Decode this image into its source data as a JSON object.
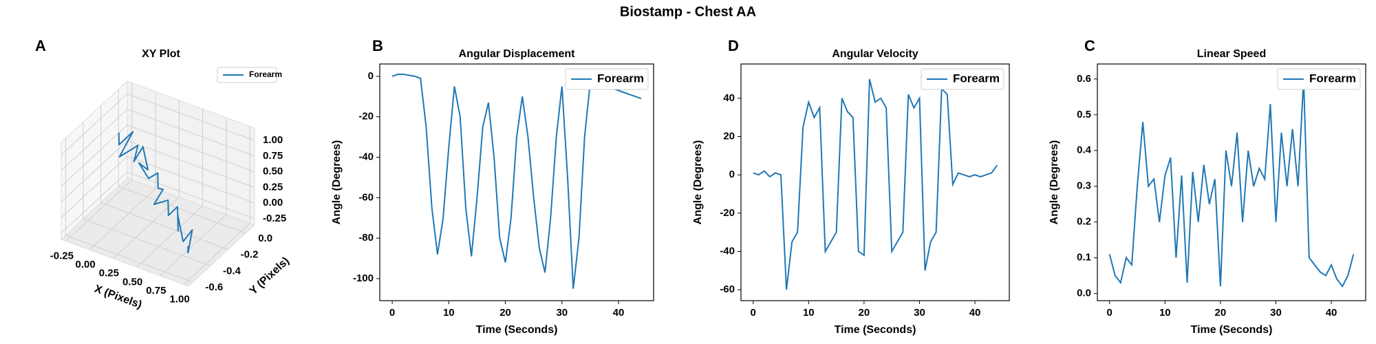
{
  "title": "Biostamp - Chest AA",
  "chart_data": [
    {
      "type": "line3d",
      "panel": "A",
      "title": "XY Plot",
      "xlabel": "X (Pixels)",
      "ylabel": "Y (Pixels)",
      "legend": "upper right",
      "xlim": [
        -0.3,
        1.05
      ],
      "ylim": [
        -0.65,
        0.1
      ],
      "zlim": [
        -0.35,
        1.2
      ],
      "xticks": [
        -0.25,
        {
          "value": 0,
          "label": "0.00"
        },
        0.25,
        {
          "value": 0.5,
          "label": "0.50"
        },
        0.75,
        {
          "value": 1,
          "label": "1.00"
        }
      ],
      "yticks": [
        {
          "value": 0,
          "label": "0.0"
        },
        -0.2,
        -0.4,
        -0.6
      ],
      "zticks": [
        -0.25,
        {
          "value": 0,
          "label": "0.00"
        },
        0.25,
        {
          "value": 0.5,
          "label": "0.50"
        },
        0.75,
        {
          "value": 1,
          "label": "1.00"
        }
      ],
      "series": [
        {
          "name": "Forearm",
          "color": "#1f77b4",
          "x": [
            -0.25,
            -0.2,
            -0.1,
            -0.15,
            0.0,
            0.05,
            0.1,
            0.2,
            0.15,
            0.3,
            0.35,
            0.4,
            0.5,
            0.45,
            0.6,
            0.65,
            0.7,
            0.8,
            0.75,
            0.9,
            0.95,
            1.0,
            0.95,
            1.0
          ],
          "y": [
            -0.05,
            -0.1,
            -0.05,
            -0.15,
            -0.1,
            -0.2,
            -0.15,
            -0.2,
            -0.25,
            -0.3,
            -0.25,
            -0.3,
            -0.35,
            -0.4,
            -0.4,
            -0.45,
            -0.4,
            -0.5,
            -0.45,
            -0.55,
            -0.5,
            -0.6,
            -0.55,
            -0.6
          ],
          "z": [
            0.6,
            0.5,
            0.7,
            0.4,
            0.6,
            0.5,
            0.7,
            0.45,
            0.6,
            0.5,
            0.55,
            0.4,
            0.5,
            0.3,
            0.45,
            0.3,
            0.4,
            0.2,
            0.35,
            0.15,
            0.3,
            0.1,
            0.0,
            0.2
          ]
        }
      ]
    },
    {
      "type": "line",
      "panel": "B",
      "title": "Angular Displacement",
      "xlabel": "Time (Seconds)",
      "ylabel": "Angle (Degrees)",
      "legend": "upper right",
      "xlim": [
        -2.2,
        46.2
      ],
      "ylim": [
        -110.9,
        6.1
      ],
      "xticks": [
        0,
        10,
        20,
        30,
        40
      ],
      "yticks": [
        0,
        -20,
        -40,
        -60,
        -80,
        -100
      ],
      "x": [
        0,
        1,
        2,
        3,
        4,
        5,
        6,
        7,
        8,
        9,
        10,
        11,
        12,
        13,
        14,
        15,
        16,
        17,
        18,
        19,
        20,
        21,
        22,
        23,
        24,
        25,
        26,
        27,
        28,
        29,
        30,
        31,
        32,
        33,
        34,
        35,
        36,
        37,
        38,
        39,
        40,
        41,
        42,
        43,
        44
      ],
      "series": [
        {
          "name": "Forearm",
          "color": "#1f77b4",
          "values": [
            0,
            1,
            1,
            0.5,
            0,
            -1,
            -25,
            -65,
            -88,
            -70,
            -35,
            -5,
            -20,
            -65,
            -89,
            -60,
            -25,
            -13,
            -40,
            -80,
            -92,
            -70,
            -30,
            -10,
            -30,
            -60,
            -85,
            -97,
            -70,
            -30,
            -5,
            -50,
            -105,
            -80,
            -30,
            -3,
            -4,
            -5,
            -5,
            -6,
            -7,
            -8,
            -9,
            -10,
            -11
          ]
        }
      ]
    },
    {
      "type": "line",
      "panel": "D",
      "title": "Angular Velocity",
      "xlabel": "Time (Seconds)",
      "ylabel": "Angle (Degrees)",
      "legend": "upper right",
      "xlim": [
        -2.2,
        46.2
      ],
      "ylim": [
        -65.7,
        57.9
      ],
      "xticks": [
        0,
        10,
        20,
        30,
        40
      ],
      "yticks": [
        -60,
        -40,
        -20,
        0,
        20,
        40
      ],
      "x": [
        0,
        1,
        2,
        3,
        4,
        5,
        6,
        7,
        8,
        9,
        10,
        11,
        12,
        13,
        14,
        15,
        16,
        17,
        18,
        19,
        20,
        21,
        22,
        23,
        24,
        25,
        26,
        27,
        28,
        29,
        30,
        31,
        32,
        33,
        34,
        35,
        36,
        37,
        38,
        39,
        40,
        41,
        42,
        43,
        44
      ],
      "series": [
        {
          "name": "Forearm",
          "color": "#1f77b4",
          "values": [
            1,
            0,
            2,
            -1,
            1,
            0,
            -60,
            -35,
            -30,
            25,
            38,
            30,
            35,
            -40,
            -35,
            -30,
            40,
            33,
            30,
            -40,
            -42,
            50,
            38,
            40,
            35,
            -40,
            -35,
            -30,
            42,
            35,
            40,
            -50,
            -35,
            -30,
            45,
            42,
            -5,
            1,
            0,
            -1,
            0,
            -1,
            0,
            1,
            5
          ]
        }
      ]
    },
    {
      "type": "line",
      "panel": "C",
      "title": "Linear Speed",
      "xlabel": "Time (Seconds)",
      "ylabel": "Angle (Degrees)",
      "legend": "upper right",
      "xlim": [
        -2.2,
        46.2
      ],
      "ylim": [
        -0.02,
        0.642
      ],
      "xticks": [
        0,
        10,
        20,
        30,
        40
      ],
      "yticks": [
        {
          "value": 0,
          "label": "0.0"
        },
        0.1,
        0.2,
        0.3,
        0.4,
        0.5,
        0.6
      ],
      "x": [
        0,
        1,
        2,
        3,
        4,
        5,
        6,
        7,
        8,
        9,
        10,
        11,
        12,
        13,
        14,
        15,
        16,
        17,
        18,
        19,
        20,
        21,
        22,
        23,
        24,
        25,
        26,
        27,
        28,
        29,
        30,
        31,
        32,
        33,
        34,
        35,
        36,
        37,
        38,
        39,
        40,
        41,
        42,
        43,
        44
      ],
      "series": [
        {
          "name": "Forearm",
          "color": "#1f77b4",
          "values": [
            0.11,
            0.05,
            0.03,
            0.1,
            0.08,
            0.3,
            0.48,
            0.3,
            0.32,
            0.2,
            0.33,
            0.38,
            0.1,
            0.33,
            0.03,
            0.34,
            0.2,
            0.36,
            0.25,
            0.32,
            0.02,
            0.4,
            0.3,
            0.45,
            0.2,
            0.4,
            0.3,
            0.35,
            0.32,
            0.53,
            0.2,
            0.45,
            0.3,
            0.46,
            0.3,
            0.6,
            0.1,
            0.08,
            0.06,
            0.05,
            0.08,
            0.04,
            0.02,
            0.05,
            0.11
          ]
        }
      ]
    }
  ]
}
